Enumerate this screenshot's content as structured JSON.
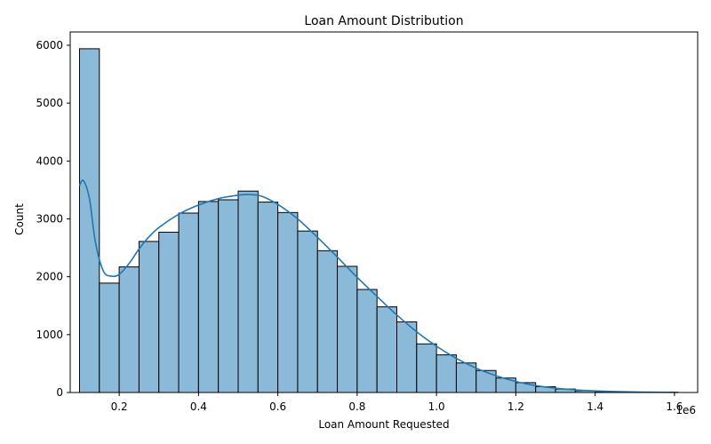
{
  "chart_data": {
    "type": "bar",
    "title": "Loan Amount Distribution",
    "xlabel": "Loan Amount Requested",
    "ylabel": "Count",
    "x_offset_label": "1e6",
    "xlim": [
      0.0765,
      1.6585
    ],
    "ylim": [
      0,
      6230
    ],
    "x_ticks": [
      0.2,
      0.4,
      0.6,
      0.8,
      1.0,
      1.2,
      1.4,
      1.6
    ],
    "x_tick_labels": [
      "0.2",
      "0.4",
      "0.6",
      "0.8",
      "1.0",
      "1.2",
      "1.4",
      "1.6"
    ],
    "y_ticks": [
      0,
      1000,
      2000,
      3000,
      4000,
      5000,
      6000
    ],
    "y_tick_labels": [
      "0",
      "1000",
      "2000",
      "3000",
      "4000",
      "5000",
      "6000"
    ],
    "grid": false,
    "bar_color": "#8bbad9",
    "bar_edge_color": "#000000",
    "kde_color": "#1f77b4",
    "bins": [
      {
        "x0": 0.1,
        "x1": 0.15,
        "count": 5940
      },
      {
        "x0": 0.15,
        "x1": 0.2,
        "count": 1890
      },
      {
        "x0": 0.2,
        "x1": 0.25,
        "count": 2170
      },
      {
        "x0": 0.25,
        "x1": 0.3,
        "count": 2610
      },
      {
        "x0": 0.3,
        "x1": 0.35,
        "count": 2770
      },
      {
        "x0": 0.35,
        "x1": 0.4,
        "count": 3100
      },
      {
        "x0": 0.4,
        "x1": 0.45,
        "count": 3300
      },
      {
        "x0": 0.45,
        "x1": 0.5,
        "count": 3330
      },
      {
        "x0": 0.5,
        "x1": 0.55,
        "count": 3480
      },
      {
        "x0": 0.55,
        "x1": 0.6,
        "count": 3290
      },
      {
        "x0": 0.6,
        "x1": 0.65,
        "count": 3110
      },
      {
        "x0": 0.65,
        "x1": 0.7,
        "count": 2790
      },
      {
        "x0": 0.7,
        "x1": 0.75,
        "count": 2450
      },
      {
        "x0": 0.75,
        "x1": 0.8,
        "count": 2180
      },
      {
        "x0": 0.8,
        "x1": 0.85,
        "count": 1780
      },
      {
        "x0": 0.85,
        "x1": 0.9,
        "count": 1480
      },
      {
        "x0": 0.9,
        "x1": 0.95,
        "count": 1220
      },
      {
        "x0": 0.95,
        "x1": 1.0,
        "count": 840
      },
      {
        "x0": 1.0,
        "x1": 1.05,
        "count": 650
      },
      {
        "x0": 1.05,
        "x1": 1.1,
        "count": 510
      },
      {
        "x0": 1.1,
        "x1": 1.15,
        "count": 380
      },
      {
        "x0": 1.15,
        "x1": 1.2,
        "count": 250
      },
      {
        "x0": 1.2,
        "x1": 1.25,
        "count": 170
      },
      {
        "x0": 1.25,
        "x1": 1.3,
        "count": 100
      },
      {
        "x0": 1.3,
        "x1": 1.35,
        "count": 60
      },
      {
        "x0": 1.35,
        "x1": 1.4,
        "count": 30
      },
      {
        "x0": 1.4,
        "x1": 1.45,
        "count": 15
      },
      {
        "x0": 1.45,
        "x1": 1.5,
        "count": 8
      },
      {
        "x0": 1.5,
        "x1": 1.55,
        "count": 4
      },
      {
        "x0": 1.55,
        "x1": 1.6,
        "count": 2
      }
    ],
    "kde": {
      "x": [
        0.1,
        0.11,
        0.125,
        0.14,
        0.16,
        0.18,
        0.2,
        0.225,
        0.25,
        0.275,
        0.3,
        0.35,
        0.4,
        0.45,
        0.5,
        0.53,
        0.56,
        0.6,
        0.65,
        0.7,
        0.75,
        0.8,
        0.85,
        0.9,
        0.95,
        1.0,
        1.05,
        1.1,
        1.15,
        1.2,
        1.25,
        1.3,
        1.35,
        1.4,
        1.45,
        1.5,
        1.55,
        1.61
      ],
      "y": [
        3580,
        3660,
        3350,
        2600,
        2100,
        2010,
        2040,
        2230,
        2480,
        2690,
        2850,
        3080,
        3240,
        3350,
        3410,
        3420,
        3390,
        3250,
        3000,
        2680,
        2340,
        1990,
        1660,
        1340,
        1050,
        800,
        590,
        420,
        290,
        190,
        120,
        75,
        45,
        28,
        16,
        9,
        5,
        3
      ]
    }
  }
}
